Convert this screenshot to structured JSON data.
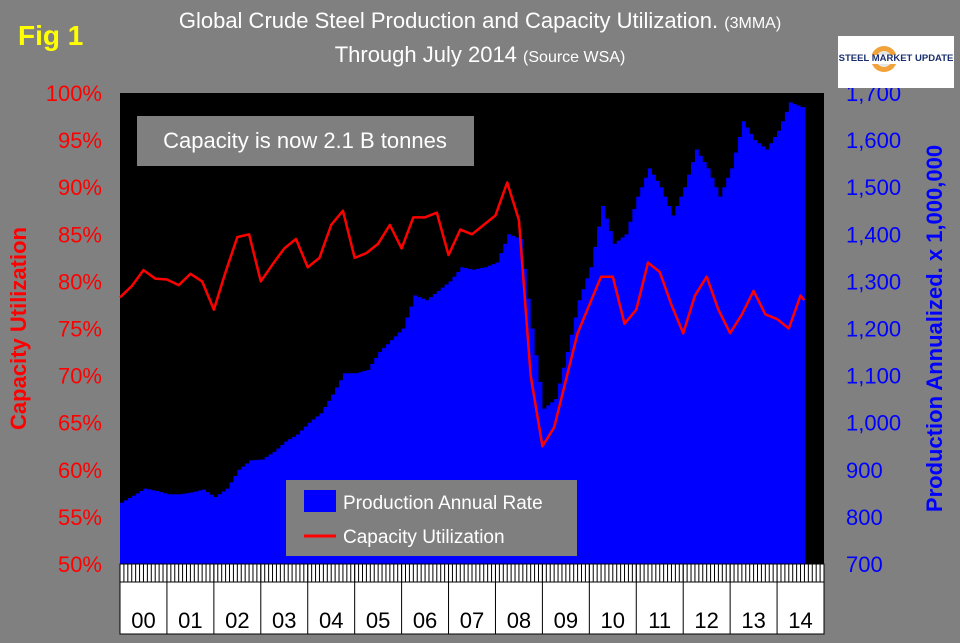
{
  "header": {
    "fig_label": "Fig 1",
    "title_main": "Global Crude Steel Production and Capacity Utilization.",
    "title_suffix": "(3MMA)",
    "subtitle_main": "Through July 2014",
    "subtitle_suffix": "(Source WSA)",
    "logo_text": "STEEL MARKET UPDATE"
  },
  "colors": {
    "background": "#808080",
    "plot_bg": "#000000",
    "production": "#0000ff",
    "utilization": "#ff0000",
    "left_axis": "#ff0000",
    "right_axis": "#0000ff",
    "fig_label": "#ffff00"
  },
  "chart_data": {
    "type": "area+line",
    "title": "Global Crude Steel Production and Capacity Utilization. (3MMA) Through July 2014",
    "annotation": "Capacity is now 2.1 B tonnes",
    "y_left_label": "Capacity Utilization",
    "y_right_label": "Production Annualized. x 1,000,000",
    "y_left_range": [
      50,
      100
    ],
    "y_right_range": [
      700,
      1700
    ],
    "y_left_ticks": [
      "50%",
      "55%",
      "60%",
      "65%",
      "70%",
      "75%",
      "80%",
      "85%",
      "90%",
      "95%",
      "100%"
    ],
    "y_right_ticks": [
      "700",
      "800",
      "900",
      "1,000",
      "1,100",
      "1,200",
      "1,300",
      "1,400",
      "1,500",
      "1,600",
      "1,700"
    ],
    "x_labels": [
      "00",
      "01",
      "02",
      "03",
      "04",
      "05",
      "06",
      "07",
      "08",
      "09",
      "10",
      "11",
      "12",
      "13",
      "14"
    ],
    "legend": [
      {
        "name": "Production Annual Rate",
        "kind": "area"
      },
      {
        "name": "Capacity Utilization",
        "kind": "line"
      }
    ],
    "series": [
      {
        "name": "Production Annual Rate",
        "unit": "million tonnes",
        "points": [
          [
            2000.0,
            830
          ],
          [
            2000.25,
            845
          ],
          [
            2000.5,
            860
          ],
          [
            2000.75,
            855
          ],
          [
            2001.0,
            848
          ],
          [
            2001.25,
            848
          ],
          [
            2001.5,
            852
          ],
          [
            2001.75,
            858
          ],
          [
            2002.0,
            842
          ],
          [
            2002.25,
            860
          ],
          [
            2002.5,
            900
          ],
          [
            2002.75,
            920
          ],
          [
            2003.0,
            922
          ],
          [
            2003.25,
            938
          ],
          [
            2003.5,
            960
          ],
          [
            2003.75,
            975
          ],
          [
            2004.0,
            1000
          ],
          [
            2004.25,
            1020
          ],
          [
            2004.5,
            1060
          ],
          [
            2004.75,
            1105
          ],
          [
            2005.0,
            1105
          ],
          [
            2005.25,
            1112
          ],
          [
            2005.5,
            1150
          ],
          [
            2005.75,
            1175
          ],
          [
            2006.0,
            1200
          ],
          [
            2006.25,
            1270
          ],
          [
            2006.5,
            1260
          ],
          [
            2006.75,
            1280
          ],
          [
            2007.0,
            1300
          ],
          [
            2007.25,
            1330
          ],
          [
            2007.5,
            1325
          ],
          [
            2007.75,
            1330
          ],
          [
            2008.0,
            1340
          ],
          [
            2008.25,
            1400
          ],
          [
            2008.5,
            1390
          ],
          [
            2008.75,
            1200
          ],
          [
            2009.0,
            1030
          ],
          [
            2009.25,
            1050
          ],
          [
            2009.5,
            1150
          ],
          [
            2009.75,
            1260
          ],
          [
            2010.0,
            1330
          ],
          [
            2010.25,
            1460
          ],
          [
            2010.5,
            1380
          ],
          [
            2010.75,
            1400
          ],
          [
            2011.0,
            1480
          ],
          [
            2011.25,
            1540
          ],
          [
            2011.5,
            1500
          ],
          [
            2011.75,
            1440
          ],
          [
            2012.0,
            1500
          ],
          [
            2012.25,
            1580
          ],
          [
            2012.5,
            1540
          ],
          [
            2012.75,
            1480
          ],
          [
            2013.0,
            1540
          ],
          [
            2013.25,
            1640
          ],
          [
            2013.5,
            1600
          ],
          [
            2013.75,
            1580
          ],
          [
            2014.0,
            1620
          ],
          [
            2014.25,
            1680
          ],
          [
            2014.5,
            1670
          ]
        ]
      },
      {
        "name": "Capacity Utilization",
        "unit": "percent",
        "points": [
          [
            2000.0,
            78.3
          ],
          [
            2000.25,
            79.5
          ],
          [
            2000.5,
            81.2
          ],
          [
            2000.75,
            80.3
          ],
          [
            2001.0,
            80.2
          ],
          [
            2001.25,
            79.6
          ],
          [
            2001.5,
            80.8
          ],
          [
            2001.75,
            80.0
          ],
          [
            2002.0,
            77.0
          ],
          [
            2002.25,
            81.0
          ],
          [
            2002.5,
            84.7
          ],
          [
            2002.75,
            85.0
          ],
          [
            2003.0,
            80.0
          ],
          [
            2003.25,
            81.8
          ],
          [
            2003.5,
            83.5
          ],
          [
            2003.75,
            84.5
          ],
          [
            2004.0,
            81.5
          ],
          [
            2004.25,
            82.5
          ],
          [
            2004.5,
            86.0
          ],
          [
            2004.75,
            87.5
          ],
          [
            2005.0,
            82.5
          ],
          [
            2005.25,
            83.0
          ],
          [
            2005.5,
            84.0
          ],
          [
            2005.75,
            86.0
          ],
          [
            2006.0,
            83.5
          ],
          [
            2006.25,
            86.8
          ],
          [
            2006.5,
            86.8
          ],
          [
            2006.75,
            87.3
          ],
          [
            2007.0,
            82.8
          ],
          [
            2007.25,
            85.5
          ],
          [
            2007.5,
            85.0
          ],
          [
            2007.75,
            86.0
          ],
          [
            2008.0,
            87.0
          ],
          [
            2008.25,
            90.5
          ],
          [
            2008.5,
            86.5
          ],
          [
            2008.75,
            70.0
          ],
          [
            2009.0,
            62.5
          ],
          [
            2009.25,
            64.5
          ],
          [
            2009.5,
            69.5
          ],
          [
            2009.75,
            74.5
          ],
          [
            2010.0,
            77.5
          ],
          [
            2010.25,
            80.5
          ],
          [
            2010.5,
            80.5
          ],
          [
            2010.75,
            75.5
          ],
          [
            2011.0,
            77.0
          ],
          [
            2011.25,
            82.0
          ],
          [
            2011.5,
            81.0
          ],
          [
            2011.75,
            77.5
          ],
          [
            2012.0,
            74.5
          ],
          [
            2012.25,
            78.5
          ],
          [
            2012.5,
            80.5
          ],
          [
            2012.75,
            77.0
          ],
          [
            2013.0,
            74.5
          ],
          [
            2013.25,
            76.5
          ],
          [
            2013.5,
            79.0
          ],
          [
            2013.75,
            76.5
          ],
          [
            2014.0,
            76.0
          ],
          [
            2014.25,
            75.0
          ],
          [
            2014.5,
            78.5
          ],
          [
            2014.58,
            78.0
          ]
        ]
      }
    ]
  }
}
